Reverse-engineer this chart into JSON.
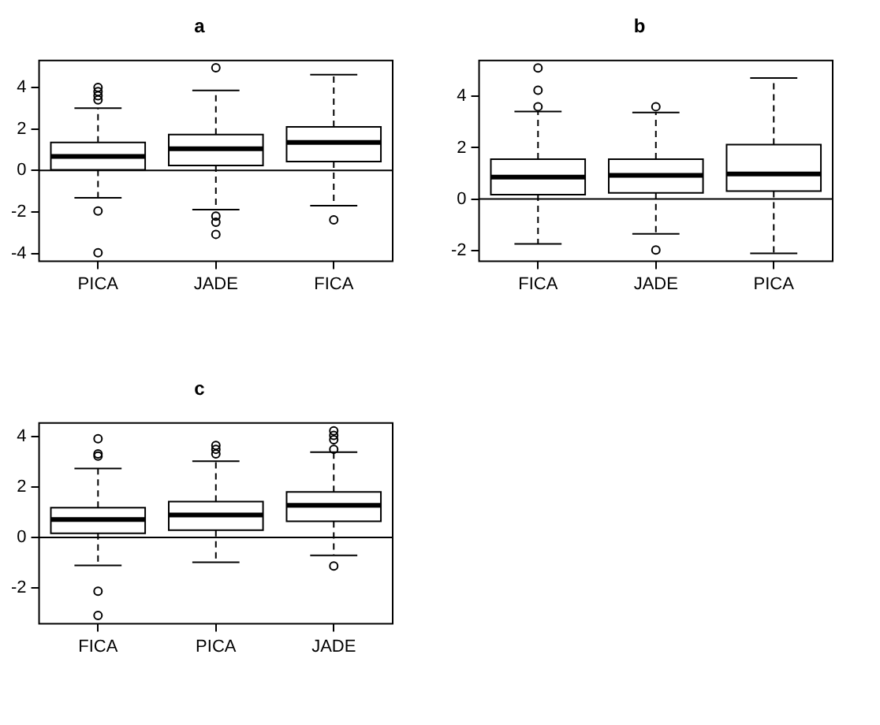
{
  "chart_data": [
    {
      "type": "box",
      "title": "a",
      "categories": [
        "PICA",
        "JADE",
        "FICA"
      ],
      "ylim": [
        -4.38,
        5.3
      ],
      "yticks": [
        -4,
        -2,
        0,
        2,
        4
      ],
      "ref_lines": [
        {
          "axis": "y",
          "value": 0,
          "color": "#000000"
        }
      ],
      "boxes": [
        {
          "low": -1.32,
          "q1": 0.03,
          "median": 0.68,
          "q3": 1.35,
          "high": 3.0,
          "outliers": [
            3.4,
            3.6,
            3.8,
            4.0,
            -1.95,
            -3.97
          ]
        },
        {
          "low": -1.89,
          "q1": 0.24,
          "median": 1.05,
          "q3": 1.73,
          "high": 3.86,
          "outliers": [
            4.95,
            -2.2,
            -2.5,
            -3.08
          ]
        },
        {
          "low": -1.7,
          "q1": 0.43,
          "median": 1.35,
          "q3": 2.1,
          "high": 4.62,
          "outliers": [
            -2.38
          ]
        }
      ]
    },
    {
      "type": "box",
      "title": "b",
      "categories": [
        "FICA",
        "JADE",
        "PICA"
      ],
      "ylim": [
        -2.43,
        5.4
      ],
      "yticks": [
        -2,
        0,
        2,
        4
      ],
      "ref_lines": [
        {
          "axis": "y",
          "value": 0,
          "color": "#000000"
        }
      ],
      "boxes": [
        {
          "low": -1.75,
          "q1": 0.17,
          "median": 0.85,
          "q3": 1.55,
          "high": 3.41,
          "outliers": [
            3.6,
            4.24,
            5.11
          ]
        },
        {
          "low": -1.36,
          "q1": 0.24,
          "median": 0.92,
          "q3": 1.55,
          "high": 3.37,
          "outliers": [
            3.6,
            -1.99
          ]
        },
        {
          "low": -2.12,
          "q1": 0.31,
          "median": 0.98,
          "q3": 2.12,
          "high": 4.72
        }
      ]
    },
    {
      "type": "box",
      "title": "c",
      "categories": [
        "FICA",
        "PICA",
        "JADE"
      ],
      "ylim": [
        -3.42,
        4.53
      ],
      "yticks": [
        -2,
        0,
        2,
        4
      ],
      "ref_lines": [
        {
          "axis": "y",
          "value": 0,
          "color": "#000000"
        }
      ],
      "boxes": [
        {
          "low": -1.11,
          "q1": 0.16,
          "median": 0.71,
          "q3": 1.18,
          "high": 2.73,
          "outliers": [
            3.22,
            3.31,
            3.91,
            -2.13,
            -3.09
          ]
        },
        {
          "low": -0.98,
          "q1": 0.29,
          "median": 0.89,
          "q3": 1.42,
          "high": 3.02,
          "outliers": [
            3.31,
            3.49,
            3.64
          ]
        },
        {
          "low": -0.71,
          "q1": 0.64,
          "median": 1.27,
          "q3": 1.8,
          "high": 3.38,
          "outliers": [
            3.49,
            3.87,
            4.04,
            4.22,
            -1.13
          ]
        }
      ]
    }
  ]
}
